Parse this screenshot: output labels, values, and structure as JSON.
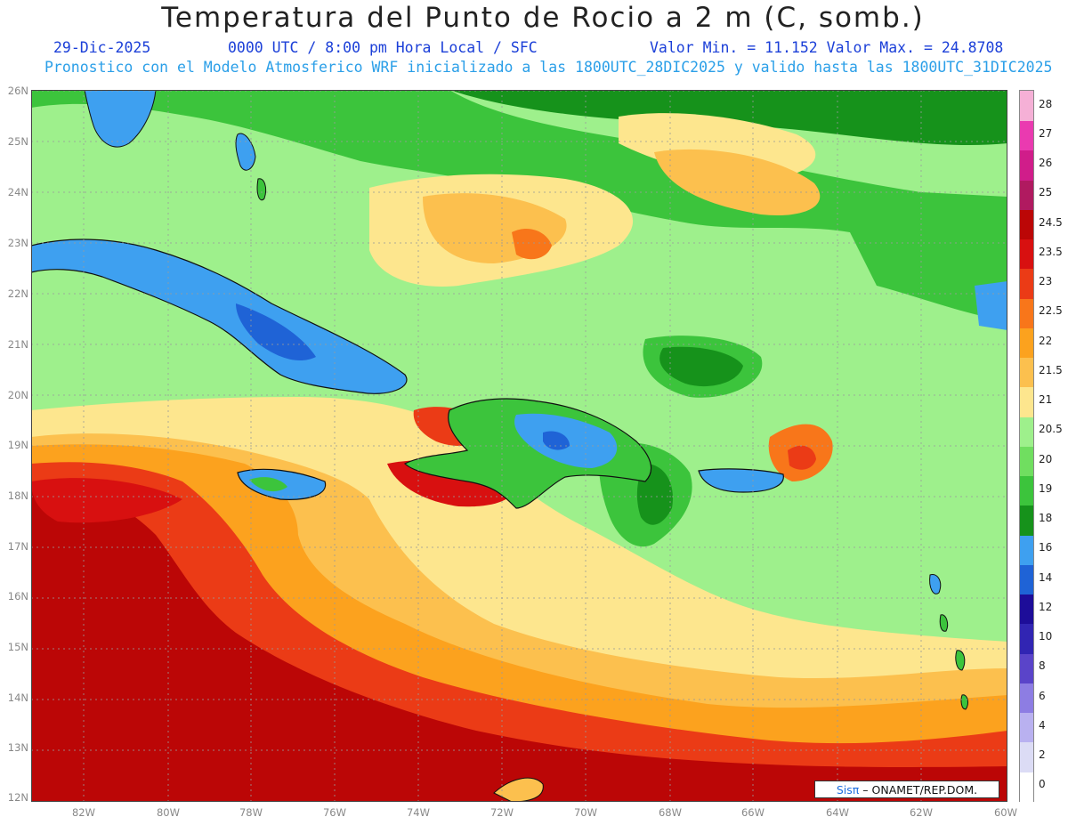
{
  "title": "Temperatura del Punto de Rocio a 2 m (C, somb.)",
  "date": "29-Dic-2025",
  "time": "0000 UTC / 8:00 pm Hora Local / SFC",
  "min_max": "Valor Min. = 11.152  Valor Max. = 24.8708",
  "model_info": "Pronostico con el Modelo Atmosferico WRF inicializado a las 1800UTC_28DIC2025 y valido hasta las  1800UTC_31DIC2025",
  "credit": {
    "logo": "Sisπ",
    "text": "– ONAMET/REP.DOM."
  },
  "lat_labels": [
    "26N",
    "25N",
    "24N",
    "23N",
    "22N",
    "21N",
    "20N",
    "19N",
    "18N",
    "17N",
    "16N",
    "15N",
    "14N",
    "13N",
    "12N"
  ],
  "lon_labels": [
    "82W",
    "80W",
    "78W",
    "76W",
    "74W",
    "72W",
    "70W",
    "68W",
    "66W",
    "64W",
    "62W",
    "60W"
  ],
  "colorbar": [
    {
      "label": "0",
      "color": "#ffffff"
    },
    {
      "label": "2",
      "color": "#dcdcf5"
    },
    {
      "label": "4",
      "color": "#b9b1f0"
    },
    {
      "label": "6",
      "color": "#8d7de3"
    },
    {
      "label": "8",
      "color": "#5a44c9"
    },
    {
      "label": "10",
      "color": "#3125b3"
    },
    {
      "label": "12",
      "color": "#1d0d99"
    },
    {
      "label": "14",
      "color": "#1f63d6"
    },
    {
      "label": "16",
      "color": "#3ea0f0"
    },
    {
      "label": "18",
      "color": "#16921b"
    },
    {
      "label": "19",
      "color": "#3cc43c"
    },
    {
      "label": "20",
      "color": "#70de60"
    },
    {
      "label": "20.5",
      "color": "#9ef08c"
    },
    {
      "label": "21",
      "color": "#fde68e"
    },
    {
      "label": "21.5",
      "color": "#fcc04e"
    },
    {
      "label": "22",
      "color": "#fca21e"
    },
    {
      "label": "22.5",
      "color": "#f8761a"
    },
    {
      "label": "23",
      "color": "#eb3b16"
    },
    {
      "label": "23.5",
      "color": "#d81010"
    },
    {
      "label": "24.5",
      "color": "#bb0606"
    },
    {
      "label": "25",
      "color": "#b01a60"
    },
    {
      "label": "26",
      "color": "#d01d8a"
    },
    {
      "label": "27",
      "color": "#ea3ab0"
    },
    {
      "label": "28",
      "color": "#f5b0d6"
    }
  ]
}
